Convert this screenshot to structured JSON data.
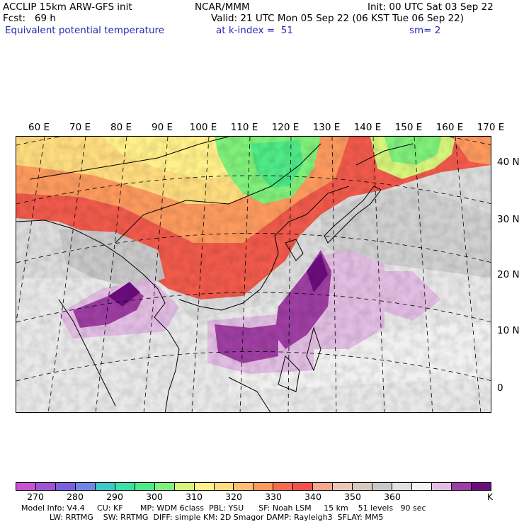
{
  "header": {
    "line1_left": "ACCLIP 15km ARW-GFS init",
    "line1_center": "NCAR/MMM",
    "line1_right": "Init: 00 UTC Sat 03 Sep 22",
    "line2_left": "Fcst:   69 h",
    "line2_right": "Valid: 21 UTC Mon 05 Sep 22 (06 KST Tue 06 Sep 22)",
    "line3_left": "Equivalent potential temperature",
    "line3_center": "at k-index =  51",
    "line3_right": "sm= 2"
  },
  "map": {
    "longitude_labels": [
      "60 E",
      "70 E",
      "80 E",
      "90 E",
      "100 E",
      "110 E",
      "120 E",
      "130 E",
      "140 E",
      "150 E",
      "160 E",
      "170 E"
    ],
    "latitude_labels": [
      "40 N",
      "30 N",
      "20 N",
      "10 N",
      "0"
    ]
  },
  "colorbar": {
    "colors": [
      "#c653d3",
      "#a052d6",
      "#7a5fde",
      "#6f86e7",
      "#3ec8c8",
      "#3be0a6",
      "#4fe987",
      "#7ff07a",
      "#d7f57b",
      "#fff08a",
      "#fedc7f",
      "#fdbe72",
      "#fc9a5e",
      "#f86a4f",
      "#f2524a",
      "#f7a68e",
      "#e9c7b5",
      "#d8c9bd",
      "#c8c8c8",
      "#e0e0e0",
      "#f4f4f4",
      "#e2bde3",
      "#9e3ea2",
      "#6a0d7c"
    ],
    "tick_labels": [
      "270",
      "280",
      "290",
      "300",
      "310",
      "320",
      "330",
      "340",
      "350",
      "360"
    ],
    "unit": "K"
  },
  "footer": {
    "line1": "Model Info: V4.4     CU: KF       MP: WDM 6class  PBL: YSU      SF: Noah LSM     15 km    51 levels   90 sec",
    "line2": "LW: RRTMG    SW: RRTMG  DIFF: simple KM: 2D Smagor DAMP: Rayleigh3  SFLAY: MM5"
  }
}
